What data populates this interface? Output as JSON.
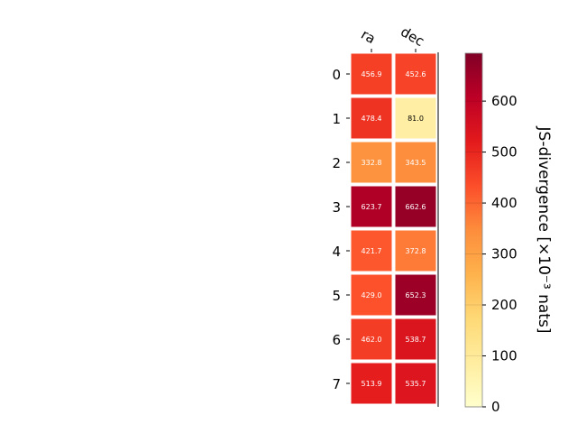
{
  "chart_data": {
    "type": "heatmap",
    "columns": [
      "ra",
      "dec"
    ],
    "rows": [
      "0",
      "1",
      "2",
      "3",
      "4",
      "5",
      "6",
      "7"
    ],
    "values": [
      [
        456.9,
        452.6
      ],
      [
        478.4,
        81.0
      ],
      [
        332.8,
        343.5
      ],
      [
        623.7,
        662.6
      ],
      [
        421.7,
        372.8
      ],
      [
        429.0,
        652.3
      ],
      [
        462.0,
        538.7
      ],
      [
        513.9,
        535.7
      ]
    ],
    "cell_labels": [
      [
        "456.9",
        "452.6"
      ],
      [
        "478.4",
        "81.0"
      ],
      [
        "332.8",
        "343.5"
      ],
      [
        "623.7",
        "662.6"
      ],
      [
        "421.7",
        "372.8"
      ],
      [
        "429.0",
        "652.3"
      ],
      [
        "462.0",
        "538.7"
      ],
      [
        "513.9",
        "535.7"
      ]
    ],
    "colorbar": {
      "label": "JS-divergence [×10⁻³ nats]",
      "range": [
        0,
        694
      ],
      "ticks": [
        0,
        100,
        200,
        300,
        400,
        500,
        600
      ],
      "tick_labels": [
        "0",
        "100",
        "200",
        "300",
        "400",
        "500",
        "600"
      ],
      "colormap": "YlOrRd",
      "colormap_stops": [
        "#ffffcc",
        "#ffeda0",
        "#fed976",
        "#feb24c",
        "#fd8d3c",
        "#fc4e2a",
        "#e31a1c",
        "#bd0026",
        "#800026"
      ]
    },
    "text_color_dark": "#000000",
    "text_color_light": "#ffffff",
    "grid": false
  }
}
